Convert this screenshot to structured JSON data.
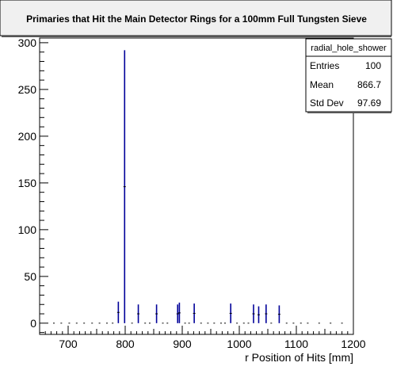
{
  "chart_data": {
    "type": "histogram",
    "title": "Primaries that Hit the Main Detector Rings for a 100mm Full Tungsten Sieve",
    "xlabel": "r Position of Hits [mm]",
    "ylabel": "",
    "xlim": [
      650,
      1200
    ],
    "ylim": [
      -12,
      305
    ],
    "x_ticks": [
      700,
      800,
      900,
      1000,
      1100,
      1200
    ],
    "y_ticks": [
      0,
      50,
      100,
      150,
      200,
      250,
      300
    ],
    "grid": false,
    "legend_position": "top-right",
    "series": [
      {
        "color": "#000099",
        "bins": [
          {
            "x": 788,
            "y": 23
          },
          {
            "x": 799,
            "y": 292
          },
          {
            "x": 823,
            "y": 20
          },
          {
            "x": 855,
            "y": 20
          },
          {
            "x": 892,
            "y": 20
          },
          {
            "x": 895,
            "y": 22
          },
          {
            "x": 921,
            "y": 21
          },
          {
            "x": 985,
            "y": 21
          },
          {
            "x": 1025,
            "y": 20
          },
          {
            "x": 1034,
            "y": 18
          },
          {
            "x": 1047,
            "y": 20
          },
          {
            "x": 1070,
            "y": 19
          }
        ],
        "sparse_points": [
          675,
          688,
          702,
          715,
          728,
          742,
          755,
          768,
          778,
          812,
          835,
          843,
          866,
          874,
          905,
          912,
          933,
          945,
          956,
          968,
          975,
          996,
          1008,
          1016,
          1056,
          1083,
          1095,
          1108,
          1120,
          1140,
          1160,
          1180
        ]
      }
    ],
    "stats_box": {
      "name": "radial_hole_shower",
      "rows": [
        {
          "label": "Entries",
          "value": "100"
        },
        {
          "label": "Mean",
          "value": "866.7"
        },
        {
          "label": "Std Dev",
          "value": "97.69"
        }
      ]
    }
  }
}
